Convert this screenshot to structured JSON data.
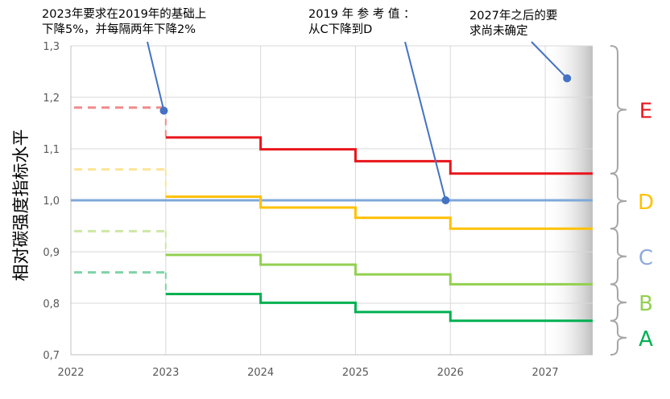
{
  "chart_data": {
    "type": "line",
    "ylabel": "相对碳强度指标水平",
    "xlabel": "",
    "title": "",
    "x_ticks": [
      "2022",
      "2023",
      "2024",
      "2025",
      "2026",
      "2027"
    ],
    "y_ticks": [
      "0,7",
      "0,8",
      "0,9",
      "1,0",
      "1,1",
      "1,2",
      "1,3"
    ],
    "ylim": [
      0.7,
      1.3
    ],
    "xlim": [
      2022,
      2027.5
    ],
    "grid": true,
    "series": [
      {
        "name": "E",
        "color": "#e8151b",
        "x": [
          2023,
          2024,
          2025,
          2026,
          2027.5
        ],
        "values": [
          1.122,
          1.099,
          1.076,
          1.052,
          1.052
        ]
      },
      {
        "name": "D",
        "color": "#ffc000",
        "x": [
          2023,
          2024,
          2025,
          2026,
          2027.5
        ],
        "values": [
          1.007,
          0.986,
          0.966,
          0.945,
          0.945
        ]
      },
      {
        "name": "C",
        "color": "#92d050",
        "x": [
          2023,
          2024,
          2025,
          2026,
          2027.5
        ],
        "values": [
          0.894,
          0.875,
          0.856,
          0.837,
          0.837
        ]
      },
      {
        "name": "B",
        "color": "#00b050",
        "x": [
          2023,
          2024,
          2025,
          2026,
          2027.5
        ],
        "values": [
          0.818,
          0.801,
          0.783,
          0.766,
          0.766
        ]
      }
    ],
    "reference_line": {
      "value": 1.0,
      "color": "#7fa8d9"
    },
    "pre2023_dashed": [
      {
        "band": "E",
        "value": 1.18,
        "color": "#f08c8c"
      },
      {
        "band": "D",
        "value": 1.06,
        "color": "#fde497"
      },
      {
        "band": "C",
        "value": 0.94,
        "color": "#cde8a6"
      },
      {
        "band": "B",
        "value": 0.86,
        "color": "#7fd3a6"
      }
    ],
    "band_labels": [
      {
        "text": "E",
        "color": "#e8151b"
      },
      {
        "text": "D",
        "color": "#ffc000"
      },
      {
        "text": "C",
        "color": "#8eaadb"
      },
      {
        "text": "B",
        "color": "#92d050"
      },
      {
        "text": "A",
        "color": "#00b050"
      }
    ],
    "band_edges": [
      1.3,
      1.052,
      0.945,
      0.837,
      0.766,
      0.7
    ],
    "shaded_region": {
      "from": 2027,
      "to": 2027.5
    },
    "annotations": [
      {
        "lines": [
          "2023年要求在2019年的基础上",
          "下降5%，并每隔两年下降2%"
        ],
        "point": {
          "x": 2022.98,
          "y": 1.174
        }
      },
      {
        "lines": [
          "2019 年 参 考 值 ：",
          "从C下降到D"
        ],
        "point": {
          "x": 2025.95,
          "y": 1.0
        }
      },
      {
        "lines": [
          "2027年之后的要",
          "求尚未确定"
        ],
        "point": {
          "x": 2027.23,
          "y": 1.237
        }
      }
    ],
    "marker_color": "#4472c4"
  }
}
